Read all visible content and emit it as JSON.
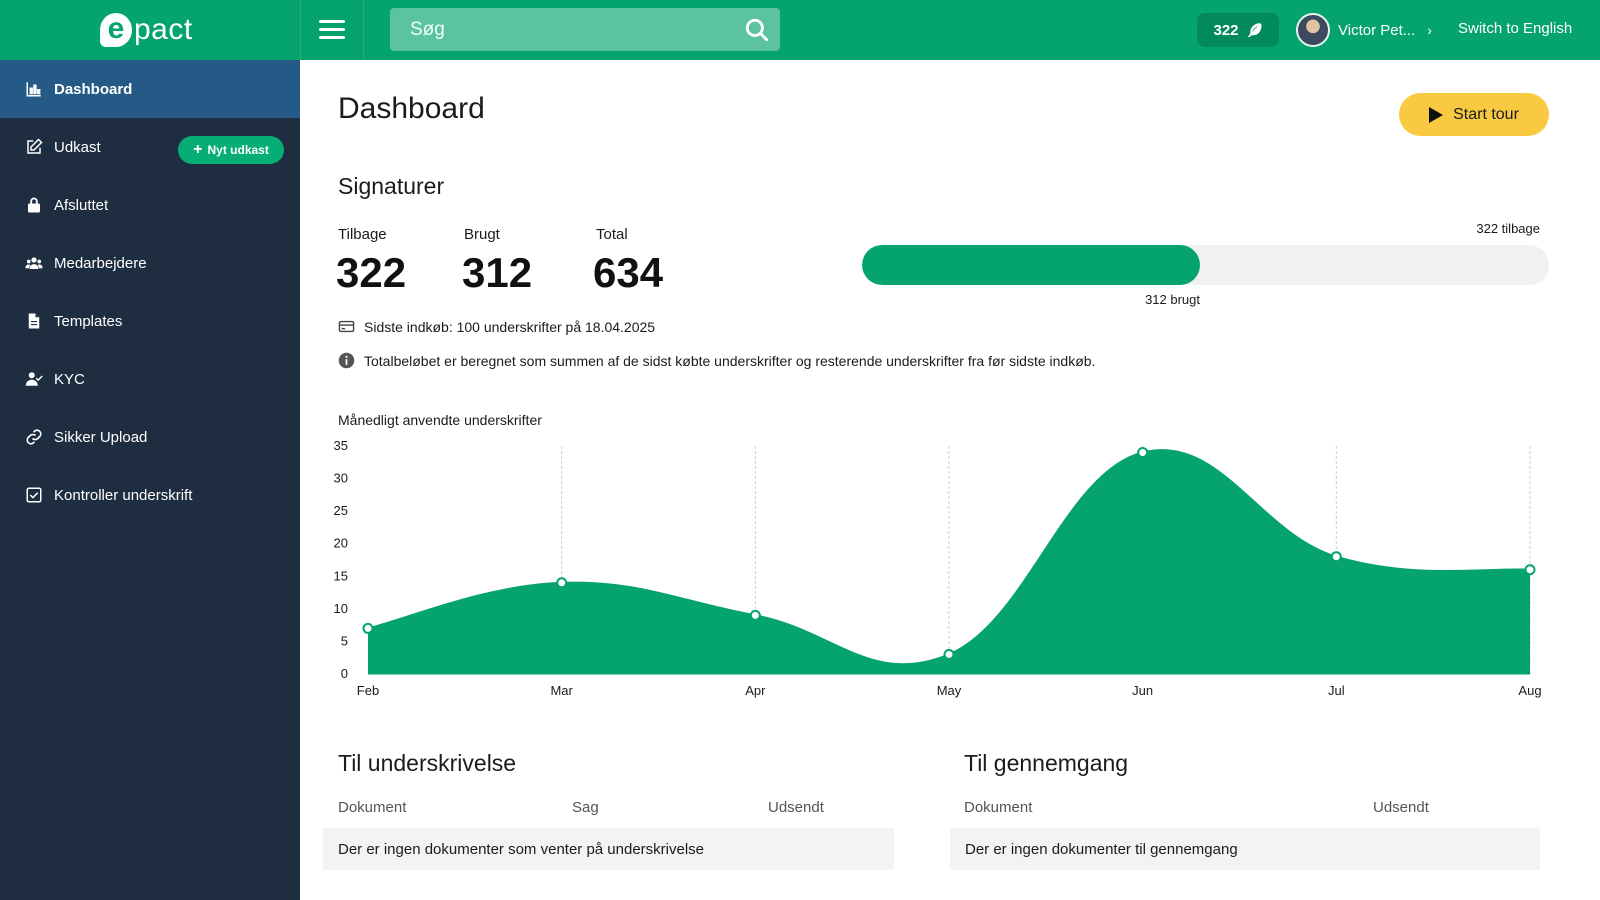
{
  "header": {
    "logo_e": "e",
    "logo_rest": "pact",
    "search_placeholder": "Søg",
    "credits": "322",
    "user_name": "Victor Pet...",
    "switch_language": "Switch to English"
  },
  "sidebar": {
    "items": [
      {
        "label": "Dashboard",
        "icon": "bar-chart-icon",
        "active": true
      },
      {
        "label": "Udkast",
        "icon": "edit-icon"
      },
      {
        "label": "Afsluttet",
        "icon": "lock-icon"
      },
      {
        "label": "Medarbejdere",
        "icon": "users-icon"
      },
      {
        "label": "Templates",
        "icon": "file-icon"
      },
      {
        "label": "KYC",
        "icon": "user-check-icon"
      },
      {
        "label": "Sikker Upload",
        "icon": "link-icon"
      },
      {
        "label": "Kontroller underskrift",
        "icon": "check-square-icon"
      }
    ],
    "new_draft_label": "Nyt udkast"
  },
  "main": {
    "title": "Dashboard",
    "start_tour": "Start tour",
    "signatures": {
      "title": "Signaturer",
      "remaining_label": "Tilbage",
      "remaining": "322",
      "used_label": "Brugt",
      "used": "312",
      "total_label": "Total",
      "total": "634",
      "progress_fraction": 0.492,
      "bar_remaining_text": "322 tilbage",
      "bar_used_text": "312 brugt",
      "last_purchase": "Sidste indkøb: 100 underskrifter på 18.04.2025",
      "info": "Totalbeløbet er beregnet som summen af de sidst købte underskrifter og resterende underskrifter fra før sidste indkøb."
    },
    "chart_title": "Månedligt anvendte underskrifter",
    "to_sign": {
      "title": "Til underskrivelse",
      "columns": [
        "Dokument",
        "Sag",
        "Udsendt"
      ],
      "empty": "Der er ingen dokumenter som venter på underskrivelse"
    },
    "to_review": {
      "title": "Til gennemgang",
      "columns": [
        "Dokument",
        "Udsendt"
      ],
      "empty": "Der er ingen dokumenter til gennemgang"
    }
  },
  "colors": {
    "accent": "#05a36e",
    "sidebar": "#1f2d41",
    "sidebar_active": "#265a86",
    "tour_button": "#f9c942"
  },
  "chart_data": {
    "type": "area",
    "title": "Månedligt anvendte underskrifter",
    "categories": [
      "Feb",
      "Mar",
      "Apr",
      "May",
      "Jun",
      "Jul",
      "Aug"
    ],
    "values": [
      7,
      14,
      9,
      3,
      34,
      18,
      16
    ],
    "ylim": [
      0,
      35
    ],
    "yticks": [
      0,
      5,
      10,
      15,
      20,
      25,
      30,
      35
    ],
    "xlabel": "",
    "ylabel": "",
    "grid": "vertical",
    "color": "#05a36e"
  }
}
